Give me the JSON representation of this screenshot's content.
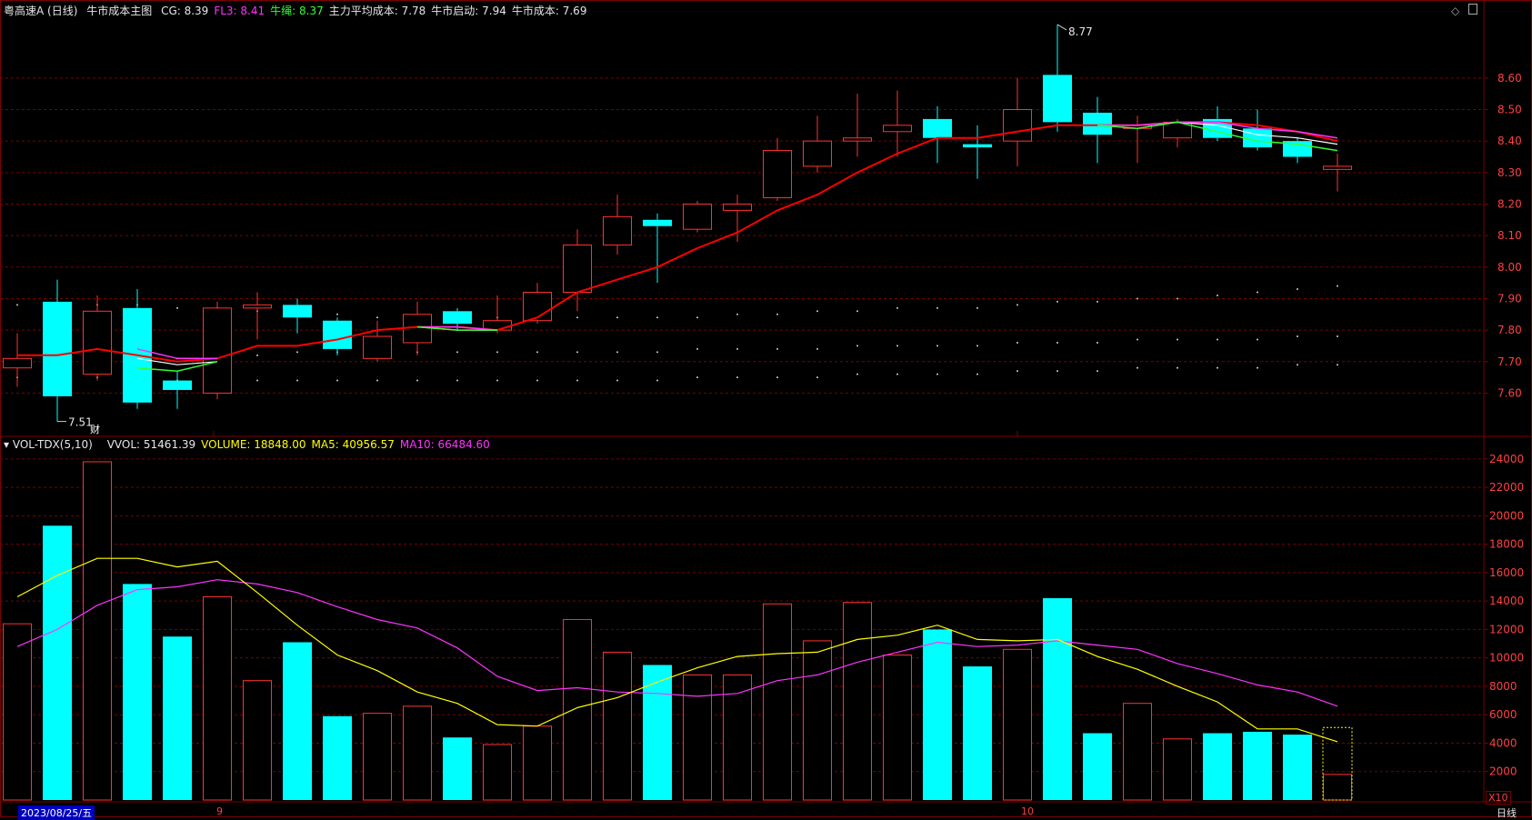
{
  "header": {
    "name": "粤高速A (日线)",
    "indicator": "牛市成本主图",
    "items": [
      {
        "label": "CG: 8.39",
        "color": "#e6e6e6"
      },
      {
        "label": "FL3: 8.41",
        "color": "#ff33ff"
      },
      {
        "label": "牛绳: 8.37",
        "color": "#33ff33"
      },
      {
        "label": "主力平均成本: 7.78",
        "color": "#e6e6e6"
      },
      {
        "label": "牛市启动: 7.94",
        "color": "#e6e6e6"
      },
      {
        "label": "牛市成本: 7.69",
        "color": "#e6e6e6"
      }
    ]
  },
  "vol_header": {
    "name": "VOL-TDX(5,10)",
    "items": [
      {
        "label": "VVOL: 51461.39",
        "color": "#e6e6e6"
      },
      {
        "label": "VOLUME: 18848.00",
        "color": "#ffff00"
      },
      {
        "label": "MA5: 40956.57",
        "color": "#ffff00"
      },
      {
        "label": "MA10: 66484.60",
        "color": "#ff33ff"
      }
    ]
  },
  "labels": {
    "high": "8.77",
    "low": "7.51",
    "cai": "财",
    "date": "2023/08/25/五",
    "month_9": "9",
    "month_10": "10",
    "x10": "X10",
    "period": "日线"
  },
  "colors": {
    "up": "#ff3232",
    "down": "#00ffff",
    "ma_red": "#ff0000",
    "fl3": "#ff33ff",
    "rope": "#33ff33",
    "cg": "#ffffff",
    "ma5": "#ffff00",
    "ma10": "#ff33ff",
    "grid": "#7a0000",
    "axis_text": "#ff4040"
  },
  "chart_data": [
    {
      "type": "candlestick",
      "price_ticks": [
        "8.60",
        "8.50",
        "8.40",
        "8.30",
        "8.20",
        "8.10",
        "8.00",
        "7.90",
        "7.80",
        "7.70",
        "7.60"
      ],
      "ylim": [
        7.48,
        8.79
      ],
      "candles": [
        {
          "o": 7.68,
          "h": 7.79,
          "l": 7.62,
          "c": 7.71
        },
        {
          "o": 7.89,
          "h": 7.96,
          "l": 7.51,
          "c": 7.59
        },
        {
          "o": 7.66,
          "h": 7.91,
          "l": 7.64,
          "c": 7.86
        },
        {
          "o": 7.87,
          "h": 7.93,
          "l": 7.55,
          "c": 7.57
        },
        {
          "o": 7.64,
          "h": 7.67,
          "l": 7.55,
          "c": 7.61
        },
        {
          "o": 7.6,
          "h": 7.89,
          "l": 7.58,
          "c": 7.87
        },
        {
          "o": 7.87,
          "h": 7.92,
          "l": 7.77,
          "c": 7.88
        },
        {
          "o": 7.88,
          "h": 7.9,
          "l": 7.79,
          "c": 7.84
        },
        {
          "o": 7.83,
          "h": 7.84,
          "l": 7.72,
          "c": 7.74
        },
        {
          "o": 7.71,
          "h": 7.83,
          "l": 7.7,
          "c": 7.78
        },
        {
          "o": 7.76,
          "h": 7.89,
          "l": 7.72,
          "c": 7.85
        },
        {
          "o": 7.86,
          "h": 7.87,
          "l": 7.8,
          "c": 7.82
        },
        {
          "o": 7.8,
          "h": 7.91,
          "l": 7.79,
          "c": 7.83
        },
        {
          "o": 7.83,
          "h": 7.95,
          "l": 7.82,
          "c": 7.92
        },
        {
          "o": 7.92,
          "h": 8.12,
          "l": 7.86,
          "c": 8.07
        },
        {
          "o": 8.07,
          "h": 8.23,
          "l": 8.04,
          "c": 8.16
        },
        {
          "o": 8.15,
          "h": 8.17,
          "l": 7.95,
          "c": 8.13
        },
        {
          "o": 8.12,
          "h": 8.21,
          "l": 8.11,
          "c": 8.2
        },
        {
          "o": 8.18,
          "h": 8.23,
          "l": 8.08,
          "c": 8.2
        },
        {
          "o": 8.22,
          "h": 8.41,
          "l": 8.21,
          "c": 8.37
        },
        {
          "o": 8.32,
          "h": 8.48,
          "l": 8.3,
          "c": 8.4
        },
        {
          "o": 8.4,
          "h": 8.55,
          "l": 8.35,
          "c": 8.41
        },
        {
          "o": 8.43,
          "h": 8.56,
          "l": 8.35,
          "c": 8.45
        },
        {
          "o": 8.47,
          "h": 8.51,
          "l": 8.33,
          "c": 8.41
        },
        {
          "o": 8.39,
          "h": 8.45,
          "l": 8.28,
          "c": 8.38
        },
        {
          "o": 8.4,
          "h": 8.6,
          "l": 8.32,
          "c": 8.5
        },
        {
          "o": 8.61,
          "h": 8.77,
          "l": 8.43,
          "c": 8.46
        },
        {
          "o": 8.49,
          "h": 8.54,
          "l": 8.33,
          "c": 8.42
        },
        {
          "o": 8.44,
          "h": 8.48,
          "l": 8.33,
          "c": 8.45
        },
        {
          "o": 8.41,
          "h": 8.47,
          "l": 8.38,
          "c": 8.46
        },
        {
          "o": 8.47,
          "h": 8.51,
          "l": 8.4,
          "c": 8.41
        },
        {
          "o": 8.44,
          "h": 8.5,
          "l": 8.37,
          "c": 8.38
        },
        {
          "o": 8.4,
          "h": 8.41,
          "l": 8.33,
          "c": 8.35
        },
        {
          "o": 8.31,
          "h": 8.36,
          "l": 8.24,
          "c": 8.32
        }
      ],
      "ma_red": [
        7.72,
        7.72,
        7.74,
        7.72,
        7.7,
        7.71,
        7.75,
        7.75,
        7.77,
        7.8,
        7.81,
        7.81,
        7.8,
        7.84,
        7.92,
        7.96,
        8.0,
        8.06,
        8.11,
        8.18,
        8.23,
        8.3,
        8.36,
        8.41,
        8.41,
        8.43,
        8.45,
        8.45,
        8.45,
        8.46,
        8.46,
        8.45,
        8.43,
        8.4
      ],
      "fl3": [
        null,
        null,
        null,
        7.74,
        7.71,
        7.71,
        null,
        null,
        null,
        null,
        7.81,
        7.81,
        7.8,
        null,
        null,
        null,
        null,
        null,
        null,
        null,
        null,
        null,
        null,
        null,
        null,
        null,
        null,
        8.45,
        8.45,
        8.46,
        8.46,
        8.44,
        8.43,
        8.41
      ],
      "rope": [
        null,
        null,
        null,
        7.68,
        7.67,
        7.7,
        null,
        null,
        null,
        null,
        7.81,
        7.8,
        7.8,
        null,
        null,
        null,
        null,
        null,
        null,
        null,
        null,
        null,
        null,
        null,
        null,
        null,
        null,
        8.45,
        8.44,
        8.46,
        8.43,
        8.4,
        8.39,
        8.37
      ],
      "cg": [
        null,
        null,
        null,
        7.71,
        7.69,
        7.7,
        null,
        null,
        null,
        null,
        7.81,
        7.8,
        7.8,
        null,
        null,
        null,
        null,
        null,
        null,
        null,
        null,
        null,
        null,
        null,
        null,
        null,
        null,
        8.45,
        8.45,
        8.46,
        8.45,
        8.42,
        8.41,
        8.39
      ],
      "dots_upper": [
        7.88,
        7.88,
        7.88,
        7.88,
        7.87,
        7.87,
        7.86,
        7.85,
        7.85,
        7.84,
        7.84,
        7.84,
        7.84,
        7.84,
        7.84,
        7.84,
        7.84,
        7.84,
        7.85,
        7.85,
        7.86,
        7.86,
        7.87,
        7.87,
        7.87,
        7.88,
        7.89,
        7.89,
        7.9,
        7.9,
        7.91,
        7.92,
        7.93,
        7.94
      ],
      "dots_mid": [
        7.7,
        7.7,
        7.7,
        7.71,
        7.71,
        7.72,
        7.72,
        7.73,
        7.73,
        7.73,
        7.73,
        7.73,
        7.73,
        7.73,
        7.73,
        7.73,
        7.73,
        7.74,
        7.74,
        7.74,
        7.74,
        7.75,
        7.75,
        7.75,
        7.75,
        7.76,
        7.76,
        7.76,
        7.77,
        7.77,
        7.77,
        7.77,
        7.78,
        7.78
      ],
      "dots_lower": [
        7.65,
        7.65,
        7.65,
        7.64,
        7.64,
        7.64,
        7.64,
        7.64,
        7.64,
        7.64,
        7.64,
        7.64,
        7.64,
        7.64,
        7.64,
        7.64,
        7.64,
        7.65,
        7.65,
        7.65,
        7.65,
        7.66,
        7.66,
        7.66,
        7.66,
        7.67,
        7.67,
        7.67,
        7.68,
        7.68,
        7.68,
        7.68,
        7.69,
        7.69
      ]
    },
    {
      "type": "bar",
      "series_name": "VOLUME",
      "volume_ticks": [
        "24000",
        "22000",
        "20000",
        "18000",
        "16000",
        "14000",
        "12000",
        "10000",
        "8000",
        "6000",
        "4000",
        "2000"
      ],
      "ylim": [
        0,
        24500
      ],
      "volume": [
        12400,
        19300,
        23800,
        15200,
        11500,
        14300,
        8400,
        11100,
        5900,
        6100,
        6600,
        4400,
        3900,
        5200,
        12700,
        10400,
        9500,
        8800,
        8800,
        13800,
        11200,
        13900,
        10200,
        12000,
        9400,
        10600,
        14200,
        4700,
        6800,
        4300,
        4700,
        4800,
        4600,
        1800
      ],
      "ma5": [
        14300,
        15800,
        17000,
        17000,
        16400,
        16800,
        14600,
        12300,
        10200,
        9100,
        7600,
        6800,
        5300,
        5200,
        6500,
        7200,
        8300,
        9300,
        10100,
        10300,
        10400,
        11300,
        11600,
        12300,
        11300,
        11200,
        11300,
        10100,
        9200,
        8000,
        6900,
        5000,
        5000,
        4100
      ],
      "ma10": [
        10800,
        12000,
        13700,
        14800,
        15000,
        15500,
        15200,
        14600,
        13600,
        12700,
        12100,
        10700,
        8700,
        7700,
        7900,
        7600,
        7500,
        7300,
        7500,
        8400,
        8800,
        9700,
        10400,
        11100,
        10800,
        10900,
        11200,
        10900,
        10600,
        9600,
        8900,
        8100,
        7600,
        6600
      ]
    }
  ]
}
